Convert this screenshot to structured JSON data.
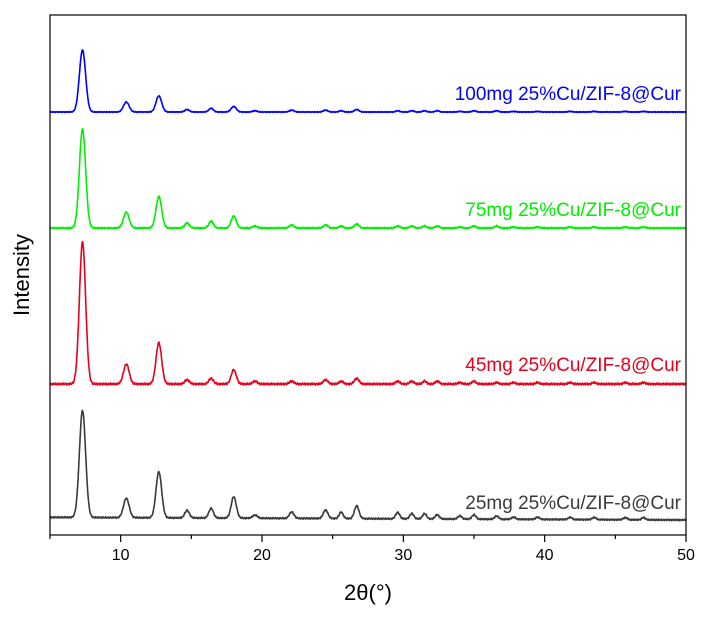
{
  "chart_data": {
    "type": "line",
    "xlabel": "2θ(°)",
    "ylabel": "Intensity",
    "xlim": [
      5,
      50
    ],
    "x_ticks": [
      10,
      20,
      30,
      40,
      50
    ],
    "y_ticks_shown": false,
    "grid": false,
    "legend": "inline labels at right of each trace",
    "peak_positions_2theta": [
      7.3,
      10.4,
      12.7,
      14.7,
      16.4,
      18.0,
      19.5,
      22.1,
      24.5,
      25.6,
      26.7,
      29.6,
      30.6,
      31.5,
      32.4,
      34.0,
      35.0,
      36.6,
      37.8,
      39.5,
      41.8,
      43.5,
      45.7,
      47.0
    ],
    "series": [
      {
        "name": "100mg 25%Cu/ZIF-8@Cur",
        "color": "#0000ff",
        "relative_intensity": [
          1.0,
          0.16,
          0.26,
          0.04,
          0.06,
          0.09,
          0.02,
          0.03,
          0.03,
          0.02,
          0.04,
          0.02,
          0.02,
          0.02,
          0.02,
          0.01,
          0.02,
          0.02,
          0.01,
          0.01,
          0.01,
          0.01,
          0.01,
          0.01
        ]
      },
      {
        "name": "75mg 25%Cu/ZIF-8@Cur",
        "color": "#00ee00",
        "relative_intensity": [
          1.0,
          0.16,
          0.32,
          0.05,
          0.07,
          0.12,
          0.02,
          0.03,
          0.03,
          0.02,
          0.04,
          0.02,
          0.02,
          0.02,
          0.02,
          0.01,
          0.02,
          0.02,
          0.01,
          0.01,
          0.01,
          0.01,
          0.01,
          0.01
        ]
      },
      {
        "name": "45mg 25%Cu/ZIF-8@Cur",
        "color": "#e8001c",
        "relative_intensity": [
          1.0,
          0.14,
          0.29,
          0.03,
          0.04,
          0.1,
          0.02,
          0.02,
          0.03,
          0.02,
          0.04,
          0.02,
          0.02,
          0.02,
          0.02,
          0.01,
          0.02,
          0.01,
          0.01,
          0.01,
          0.01,
          0.01,
          0.01,
          0.01
        ]
      },
      {
        "name": "25mg 25%Cu/ZIF-8@Cur",
        "color": "#3a3a3a",
        "relative_intensity": [
          1.0,
          0.18,
          0.43,
          0.07,
          0.09,
          0.2,
          0.03,
          0.06,
          0.08,
          0.06,
          0.12,
          0.06,
          0.05,
          0.05,
          0.04,
          0.03,
          0.04,
          0.03,
          0.02,
          0.02,
          0.02,
          0.02,
          0.02,
          0.02
        ]
      }
    ]
  }
}
